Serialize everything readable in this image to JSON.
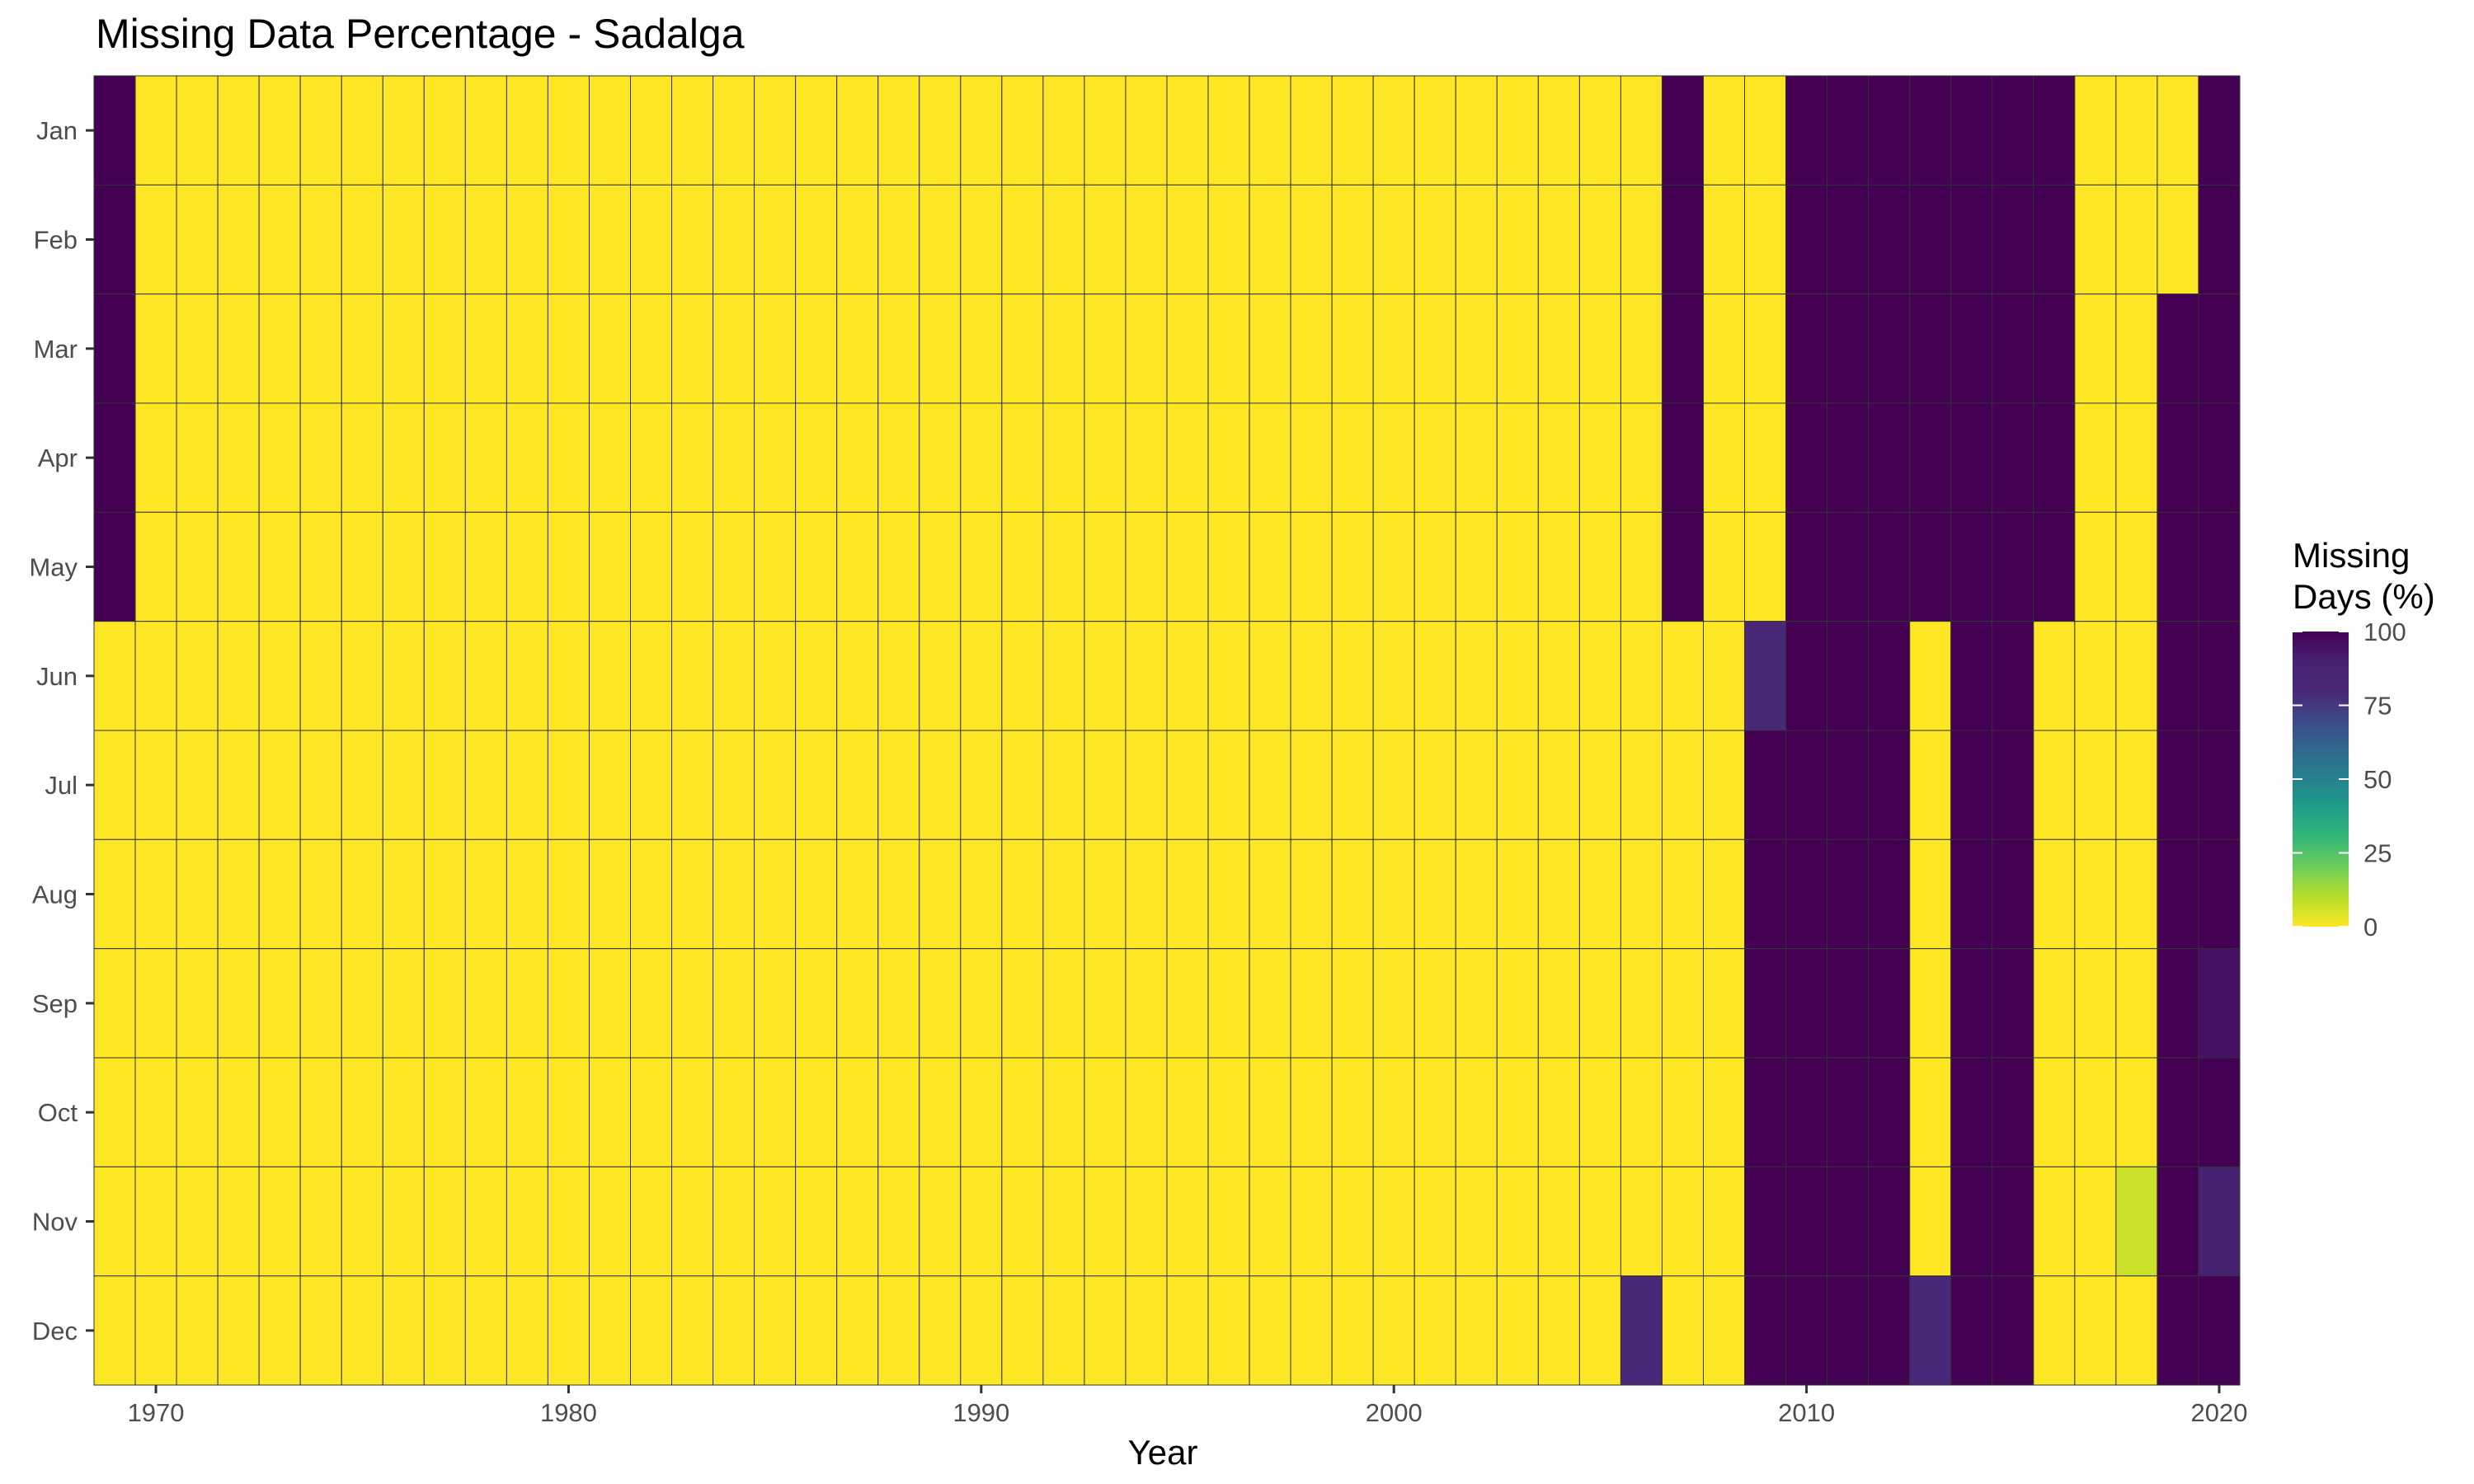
{
  "title": "Missing Data Percentage - Sadalga",
  "chart_data": {
    "type": "heatmap",
    "title": "Missing Data Percentage - Sadalga",
    "xlabel": "Year",
    "ylabel": "",
    "x_years": [
      1969,
      1970,
      1971,
      1972,
      1973,
      1974,
      1975,
      1976,
      1977,
      1978,
      1979,
      1980,
      1981,
      1982,
      1983,
      1984,
      1985,
      1986,
      1987,
      1988,
      1989,
      1990,
      1991,
      1992,
      1993,
      1994,
      1995,
      1996,
      1997,
      1998,
      1999,
      2000,
      2001,
      2002,
      2003,
      2004,
      2005,
      2006,
      2007,
      2008,
      2009,
      2010,
      2011,
      2012,
      2013,
      2014,
      2015,
      2016,
      2017,
      2018,
      2019,
      2020
    ],
    "x_ticks": [
      1970,
      1980,
      1990,
      2000,
      2010,
      2020
    ],
    "y_months": [
      "Jan",
      "Feb",
      "Mar",
      "Apr",
      "May",
      "Jun",
      "Jul",
      "Aug",
      "Sep",
      "Oct",
      "Nov",
      "Dec"
    ],
    "legend": {
      "title_line1": "Missing",
      "title_line2": "Days (%)",
      "ticks": [
        100,
        75,
        50,
        25,
        0
      ],
      "range": [
        0,
        100
      ],
      "position": "right"
    },
    "colorscale": "viridis-reversed",
    "grid": false,
    "default_value": 0,
    "cells": [
      {
        "year": 1969,
        "month": "Jan",
        "value": 100
      },
      {
        "year": 1969,
        "month": "Feb",
        "value": 100
      },
      {
        "year": 1969,
        "month": "Mar",
        "value": 100
      },
      {
        "year": 1969,
        "month": "Apr",
        "value": 100
      },
      {
        "year": 1969,
        "month": "May",
        "value": 100
      },
      {
        "year": 2006,
        "month": "Dec",
        "value": 80
      },
      {
        "year": 2007,
        "month": "Jan",
        "value": 100
      },
      {
        "year": 2007,
        "month": "Feb",
        "value": 100
      },
      {
        "year": 2007,
        "month": "Mar",
        "value": 100
      },
      {
        "year": 2007,
        "month": "Apr",
        "value": 100
      },
      {
        "year": 2007,
        "month": "May",
        "value": 100
      },
      {
        "year": 2009,
        "month": "Jun",
        "value": 80
      },
      {
        "year": 2009,
        "month": "Jul",
        "value": 100
      },
      {
        "year": 2009,
        "month": "Aug",
        "value": 100
      },
      {
        "year": 2009,
        "month": "Sep",
        "value": 100
      },
      {
        "year": 2009,
        "month": "Oct",
        "value": 100
      },
      {
        "year": 2009,
        "month": "Nov",
        "value": 100
      },
      {
        "year": 2009,
        "month": "Dec",
        "value": 100
      },
      {
        "year": 2010,
        "month": "Jan",
        "value": 100
      },
      {
        "year": 2010,
        "month": "Feb",
        "value": 100
      },
      {
        "year": 2010,
        "month": "Mar",
        "value": 100
      },
      {
        "year": 2010,
        "month": "Apr",
        "value": 100
      },
      {
        "year": 2010,
        "month": "May",
        "value": 100
      },
      {
        "year": 2010,
        "month": "Jun",
        "value": 100
      },
      {
        "year": 2010,
        "month": "Jul",
        "value": 100
      },
      {
        "year": 2010,
        "month": "Aug",
        "value": 100
      },
      {
        "year": 2010,
        "month": "Sep",
        "value": 100
      },
      {
        "year": 2010,
        "month": "Oct",
        "value": 100
      },
      {
        "year": 2010,
        "month": "Nov",
        "value": 100
      },
      {
        "year": 2010,
        "month": "Dec",
        "value": 100
      },
      {
        "year": 2011,
        "month": "Jan",
        "value": 100
      },
      {
        "year": 2011,
        "month": "Feb",
        "value": 100
      },
      {
        "year": 2011,
        "month": "Mar",
        "value": 100
      },
      {
        "year": 2011,
        "month": "Apr",
        "value": 100
      },
      {
        "year": 2011,
        "month": "May",
        "value": 100
      },
      {
        "year": 2011,
        "month": "Jun",
        "value": 100
      },
      {
        "year": 2011,
        "month": "Jul",
        "value": 100
      },
      {
        "year": 2011,
        "month": "Aug",
        "value": 100
      },
      {
        "year": 2011,
        "month": "Sep",
        "value": 100
      },
      {
        "year": 2011,
        "month": "Oct",
        "value": 100
      },
      {
        "year": 2011,
        "month": "Nov",
        "value": 100
      },
      {
        "year": 2011,
        "month": "Dec",
        "value": 100
      },
      {
        "year": 2012,
        "month": "Jan",
        "value": 100
      },
      {
        "year": 2012,
        "month": "Feb",
        "value": 100
      },
      {
        "year": 2012,
        "month": "Mar",
        "value": 100
      },
      {
        "year": 2012,
        "month": "Apr",
        "value": 100
      },
      {
        "year": 2012,
        "month": "May",
        "value": 100
      },
      {
        "year": 2012,
        "month": "Jun",
        "value": 100
      },
      {
        "year": 2012,
        "month": "Jul",
        "value": 100
      },
      {
        "year": 2012,
        "month": "Aug",
        "value": 100
      },
      {
        "year": 2012,
        "month": "Sep",
        "value": 100
      },
      {
        "year": 2012,
        "month": "Oct",
        "value": 100
      },
      {
        "year": 2012,
        "month": "Nov",
        "value": 100
      },
      {
        "year": 2012,
        "month": "Dec",
        "value": 100
      },
      {
        "year": 2013,
        "month": "Jan",
        "value": 100
      },
      {
        "year": 2013,
        "month": "Feb",
        "value": 100
      },
      {
        "year": 2013,
        "month": "Mar",
        "value": 100
      },
      {
        "year": 2013,
        "month": "Apr",
        "value": 100
      },
      {
        "year": 2013,
        "month": "May",
        "value": 100
      },
      {
        "year": 2013,
        "month": "Dec",
        "value": 80
      },
      {
        "year": 2014,
        "month": "Jan",
        "value": 100
      },
      {
        "year": 2014,
        "month": "Feb",
        "value": 100
      },
      {
        "year": 2014,
        "month": "Mar",
        "value": 100
      },
      {
        "year": 2014,
        "month": "Apr",
        "value": 100
      },
      {
        "year": 2014,
        "month": "May",
        "value": 100
      },
      {
        "year": 2014,
        "month": "Jun",
        "value": 100
      },
      {
        "year": 2014,
        "month": "Jul",
        "value": 100
      },
      {
        "year": 2014,
        "month": "Aug",
        "value": 100
      },
      {
        "year": 2014,
        "month": "Sep",
        "value": 100
      },
      {
        "year": 2014,
        "month": "Oct",
        "value": 100
      },
      {
        "year": 2014,
        "month": "Nov",
        "value": 100
      },
      {
        "year": 2014,
        "month": "Dec",
        "value": 100
      },
      {
        "year": 2015,
        "month": "Jan",
        "value": 100
      },
      {
        "year": 2015,
        "month": "Feb",
        "value": 100
      },
      {
        "year": 2015,
        "month": "Mar",
        "value": 100
      },
      {
        "year": 2015,
        "month": "Apr",
        "value": 100
      },
      {
        "year": 2015,
        "month": "May",
        "value": 100
      },
      {
        "year": 2015,
        "month": "Jun",
        "value": 100
      },
      {
        "year": 2015,
        "month": "Jul",
        "value": 100
      },
      {
        "year": 2015,
        "month": "Aug",
        "value": 100
      },
      {
        "year": 2015,
        "month": "Sep",
        "value": 100
      },
      {
        "year": 2015,
        "month": "Oct",
        "value": 100
      },
      {
        "year": 2015,
        "month": "Nov",
        "value": 100
      },
      {
        "year": 2015,
        "month": "Dec",
        "value": 100
      },
      {
        "year": 2016,
        "month": "Jan",
        "value": 100
      },
      {
        "year": 2016,
        "month": "Feb",
        "value": 100
      },
      {
        "year": 2016,
        "month": "Mar",
        "value": 100
      },
      {
        "year": 2016,
        "month": "Apr",
        "value": 100
      },
      {
        "year": 2016,
        "month": "May",
        "value": 100
      },
      {
        "year": 2018,
        "month": "Nov",
        "value": 7
      },
      {
        "year": 2019,
        "month": "Mar",
        "value": 100
      },
      {
        "year": 2019,
        "month": "Apr",
        "value": 100
      },
      {
        "year": 2019,
        "month": "May",
        "value": 100
      },
      {
        "year": 2019,
        "month": "Jun",
        "value": 100
      },
      {
        "year": 2019,
        "month": "Jul",
        "value": 100
      },
      {
        "year": 2019,
        "month": "Aug",
        "value": 100
      },
      {
        "year": 2019,
        "month": "Sep",
        "value": 100
      },
      {
        "year": 2019,
        "month": "Oct",
        "value": 100
      },
      {
        "year": 2019,
        "month": "Nov",
        "value": 100
      },
      {
        "year": 2019,
        "month": "Dec",
        "value": 100
      },
      {
        "year": 2020,
        "month": "Jan",
        "value": 100
      },
      {
        "year": 2020,
        "month": "Feb",
        "value": 100
      },
      {
        "year": 2020,
        "month": "Mar",
        "value": 100
      },
      {
        "year": 2020,
        "month": "Apr",
        "value": 100
      },
      {
        "year": 2020,
        "month": "May",
        "value": 100
      },
      {
        "year": 2020,
        "month": "Jun",
        "value": 100
      },
      {
        "year": 2020,
        "month": "Jul",
        "value": 100
      },
      {
        "year": 2020,
        "month": "Aug",
        "value": 100
      },
      {
        "year": 2020,
        "month": "Sep",
        "value": 95
      },
      {
        "year": 2020,
        "month": "Oct",
        "value": 100
      },
      {
        "year": 2020,
        "month": "Nov",
        "value": 90
      },
      {
        "year": 2020,
        "month": "Dec",
        "value": 100
      }
    ]
  }
}
